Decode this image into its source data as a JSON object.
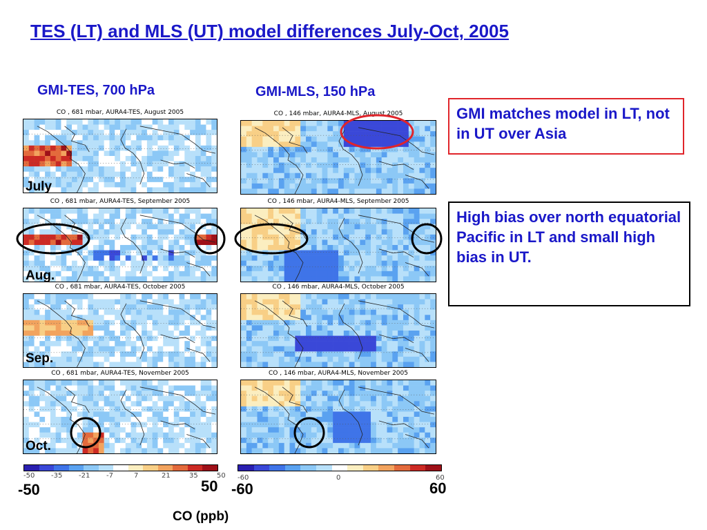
{
  "title": "TES (LT) and MLS (UT) model differences July-Oct, 2005",
  "columns": {
    "tes": "GMI-TES, 700 hPa",
    "mls": "GMI-MLS, 150 hPa"
  },
  "tes_maps": [
    "CO , 681 mbar, AURA4-TES, August 2005",
    "CO , 681 mbar, AURA4-TES, September 2005",
    "CO , 681 mbar, AURA4-TES, October 2005",
    "CO , 681 mbar, AURA4-TES, November 2005"
  ],
  "mls_maps": [
    "CO , 146 mbar, AURA4-MLS, August 2005",
    "CO , 146 mbar, AURA4-MLS, September 2005",
    "CO , 146 mbar, AURA4-MLS, October 2005",
    "CO , 146 mbar, AURA4-MLS, November 2005"
  ],
  "month_labels": [
    "July",
    "Aug.",
    "Sep.",
    "Oct."
  ],
  "notes": {
    "asia": "GMI matches model in LT, not in UT over Asia",
    "pacific": "High bias over north equatorial Pacific in LT and small high bias in UT."
  },
  "colorbars": {
    "tes_ticks": [
      "-50",
      "-35",
      "-21",
      "-7",
      "7",
      "21",
      "35",
      "50"
    ],
    "mls_ticks": [
      "-60",
      "0",
      "60"
    ],
    "tes_min": "-50",
    "tes_max": "50",
    "mls_min": "-60",
    "mls_max": "60",
    "units": "CO (ppb)",
    "colors": [
      "#2a1fb0",
      "#3a48d8",
      "#3f74e8",
      "#5aa2f0",
      "#8cc8f6",
      "#b8e0fa",
      "#ffffff",
      "#fbeec0",
      "#f8cf86",
      "#f2a35e",
      "#e36a3c",
      "#cc2a24",
      "#9e1018"
    ]
  },
  "colors": {
    "title": "#1a18c8",
    "red_ring": "#e0242a",
    "black_ring": "#000000"
  }
}
